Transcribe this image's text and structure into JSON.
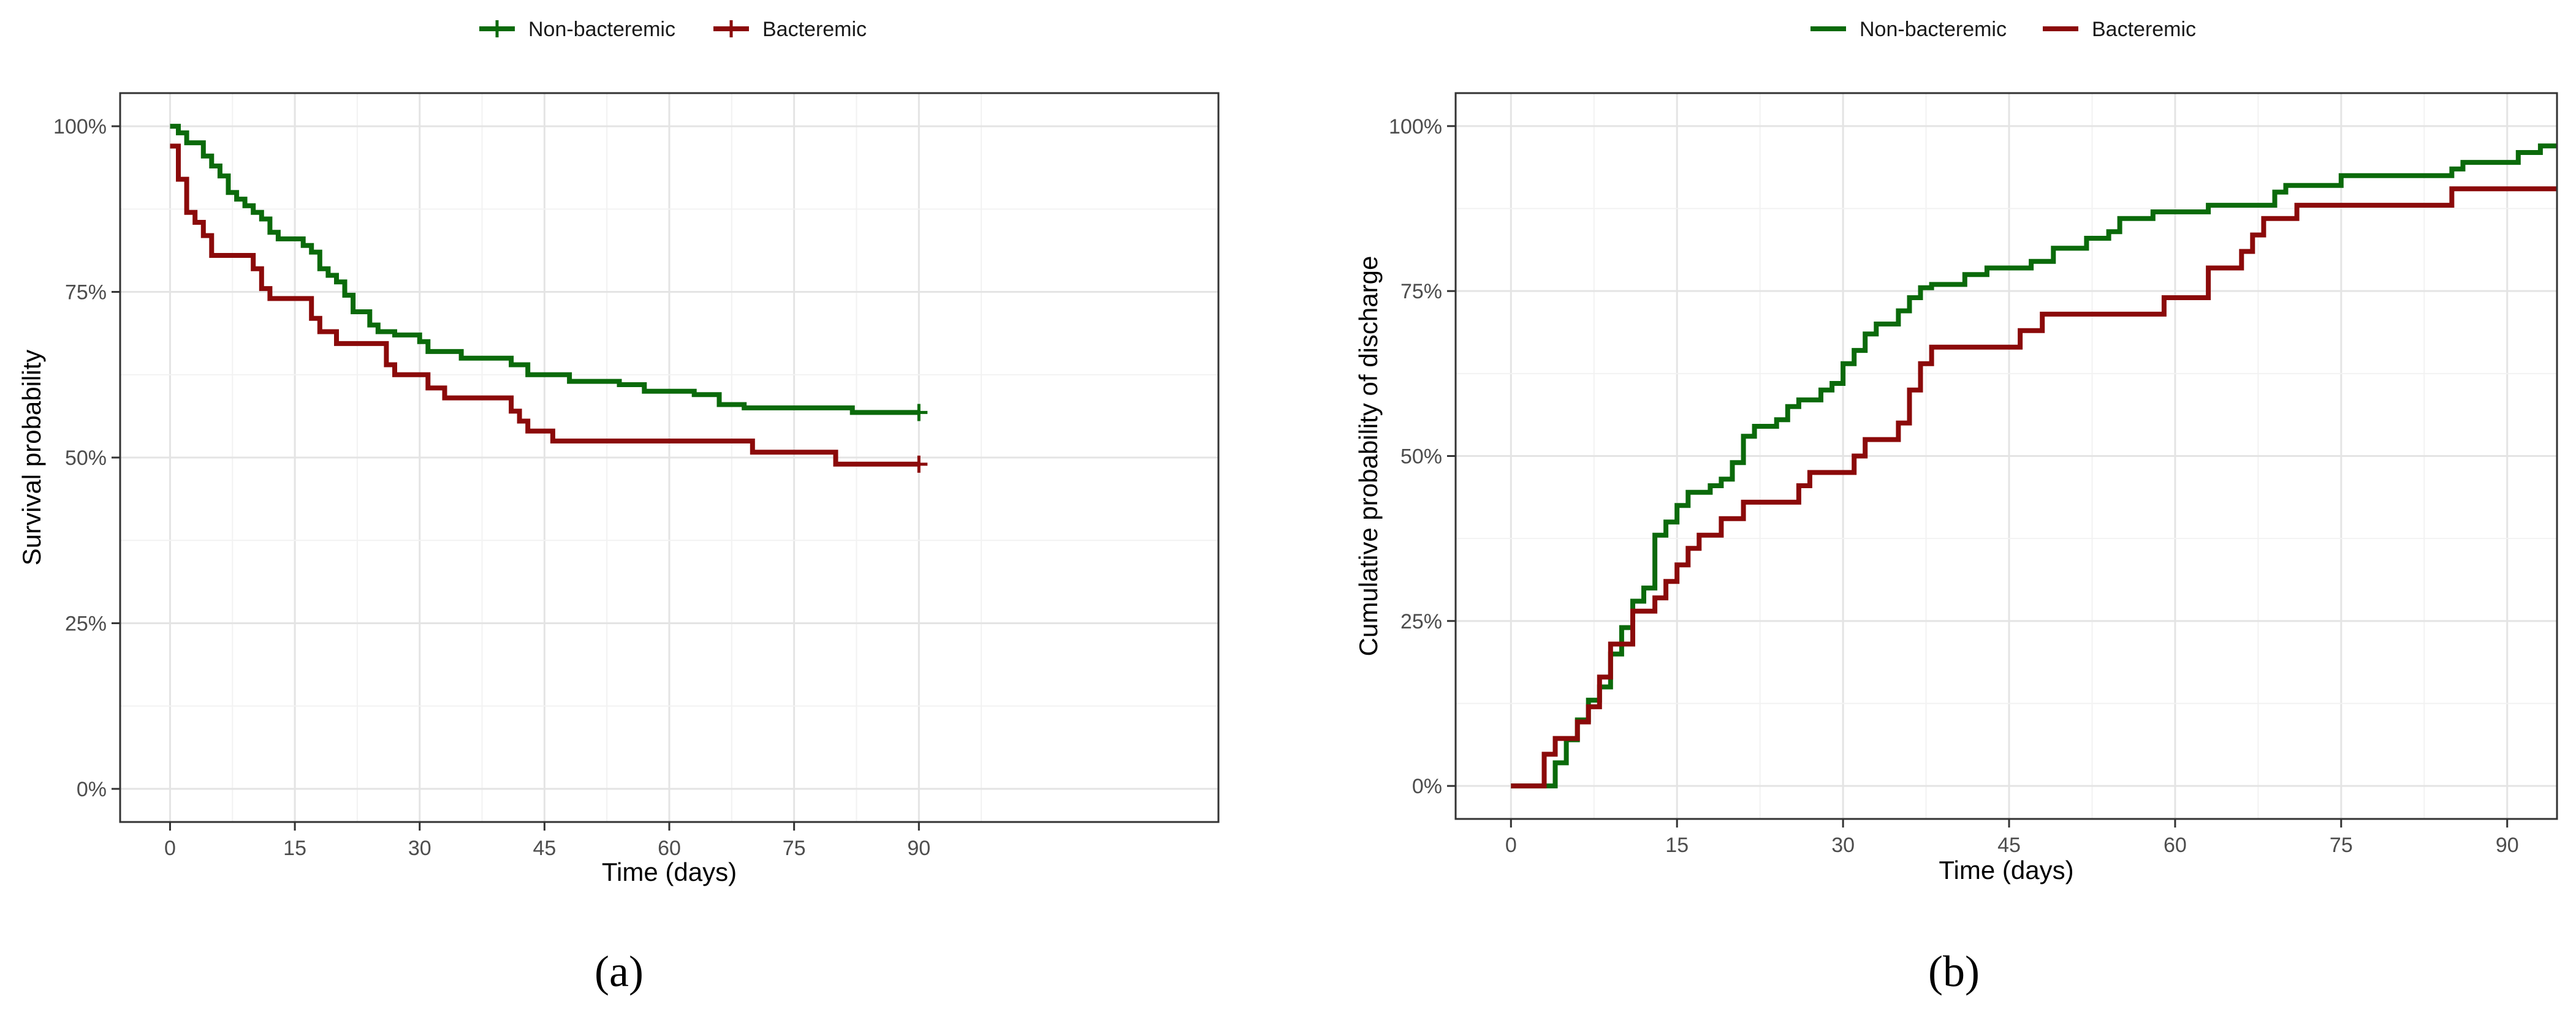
{
  "colors": {
    "non_bacteremic": "#0b6a0b",
    "bacteremic": "#8b0a0a",
    "panel_border": "#333333",
    "grid_major": "#e4e4e4",
    "grid_minor": "#f2f2f2",
    "tick_text": "#4d4d4d"
  },
  "chart_data": [
    {
      "type": "line",
      "caption": "(a)",
      "xlabel": "Time (days)",
      "ylabel": "Survival probability",
      "xlim": [
        -6,
        126
      ],
      "ylim": [
        -0.05,
        1.05
      ],
      "xticks": [
        0,
        15,
        30,
        45,
        60,
        75,
        90
      ],
      "xtick_labels": [
        "0",
        "15",
        "30",
        "45",
        "60",
        "75",
        "90"
      ],
      "yticks": [
        0,
        0.25,
        0.5,
        0.75,
        1.0
      ],
      "ytick_labels": [
        "0%",
        "25%",
        "50%",
        "75%",
        "100%"
      ],
      "grid": true,
      "legend": {
        "position": "top",
        "marker": "cross",
        "entries": [
          "Non-bacteremic",
          "Bacteremic"
        ]
      },
      "series": [
        {
          "name": "Non-bacteremic",
          "color_key": "non_bacteremic",
          "censor_mark_at": [
            90,
            0.568
          ],
          "step_points": [
            [
              0,
              1.0
            ],
            [
              1,
              0.99
            ],
            [
              2,
              0.975
            ],
            [
              4,
              0.955
            ],
            [
              5,
              0.94
            ],
            [
              6,
              0.925
            ],
            [
              7,
              0.9
            ],
            [
              8,
              0.89
            ],
            [
              9,
              0.88
            ],
            [
              10,
              0.87
            ],
            [
              11,
              0.86
            ],
            [
              12,
              0.84
            ],
            [
              13,
              0.83
            ],
            [
              16,
              0.82
            ],
            [
              17,
              0.81
            ],
            [
              18,
              0.785
            ],
            [
              19,
              0.775
            ],
            [
              20,
              0.765
            ],
            [
              21,
              0.745
            ],
            [
              22,
              0.72
            ],
            [
              24,
              0.7
            ],
            [
              25,
              0.69
            ],
            [
              27,
              0.685
            ],
            [
              30,
              0.675
            ],
            [
              31,
              0.66
            ],
            [
              35,
              0.65
            ],
            [
              41,
              0.64
            ],
            [
              43,
              0.625
            ],
            [
              48,
              0.615
            ],
            [
              54,
              0.61
            ],
            [
              57,
              0.6
            ],
            [
              63,
              0.595
            ],
            [
              66,
              0.58
            ],
            [
              69,
              0.575
            ],
            [
              82,
              0.568
            ],
            [
              90,
              0.568
            ]
          ]
        },
        {
          "name": "Bacteremic",
          "color_key": "bacteremic",
          "censor_mark_at": [
            90,
            0.49
          ],
          "step_points": [
            [
              0,
              0.97
            ],
            [
              1,
              0.92
            ],
            [
              2,
              0.87
            ],
            [
              3,
              0.855
            ],
            [
              4,
              0.835
            ],
            [
              5,
              0.805
            ],
            [
              10,
              0.785
            ],
            [
              11,
              0.755
            ],
            [
              12,
              0.74
            ],
            [
              17,
              0.71
            ],
            [
              18,
              0.69
            ],
            [
              20,
              0.672
            ],
            [
              26,
              0.64
            ],
            [
              27,
              0.625
            ],
            [
              31,
              0.605
            ],
            [
              33,
              0.59
            ],
            [
              41,
              0.57
            ],
            [
              42,
              0.555
            ],
            [
              43,
              0.54
            ],
            [
              46,
              0.525
            ],
            [
              70,
              0.508
            ],
            [
              80,
              0.49
            ],
            [
              90,
              0.49
            ]
          ]
        }
      ]
    },
    {
      "type": "line",
      "caption": "(b)",
      "xlabel": "Time (days)",
      "ylabel": "Cumulative probability of discharge",
      "xlim": [
        -5,
        94.5
      ],
      "ylim": [
        -0.05,
        1.05
      ],
      "xticks": [
        0,
        15,
        30,
        45,
        60,
        75,
        90
      ],
      "xtick_labels": [
        "0",
        "15",
        "30",
        "45",
        "60",
        "75",
        "90"
      ],
      "yticks": [
        0,
        0.25,
        0.5,
        0.75,
        1.0
      ],
      "ytick_labels": [
        "0%",
        "25%",
        "50%",
        "75%",
        "100%"
      ],
      "grid": true,
      "legend": {
        "position": "top",
        "marker": "line",
        "entries": [
          "Non-bacteremic",
          "Bacteremic"
        ]
      },
      "series": [
        {
          "name": "Non-bacteremic",
          "color_key": "non_bacteremic",
          "step_points": [
            [
              0,
              0.0
            ],
            [
              4,
              0.035
            ],
            [
              5,
              0.07
            ],
            [
              6,
              0.1
            ],
            [
              7,
              0.13
            ],
            [
              8,
              0.15
            ],
            [
              9,
              0.2
            ],
            [
              10,
              0.24
            ],
            [
              11,
              0.28
            ],
            [
              12,
              0.3
            ],
            [
              13,
              0.38
            ],
            [
              14,
              0.4
            ],
            [
              15,
              0.425
            ],
            [
              16,
              0.445
            ],
            [
              18,
              0.455
            ],
            [
              19,
              0.465
            ],
            [
              20,
              0.49
            ],
            [
              21,
              0.53
            ],
            [
              22,
              0.545
            ],
            [
              24,
              0.555
            ],
            [
              25,
              0.575
            ],
            [
              26,
              0.585
            ],
            [
              28,
              0.6
            ],
            [
              29,
              0.61
            ],
            [
              30,
              0.64
            ],
            [
              31,
              0.66
            ],
            [
              32,
              0.685
            ],
            [
              33,
              0.7
            ],
            [
              35,
              0.72
            ],
            [
              36,
              0.74
            ],
            [
              37,
              0.755
            ],
            [
              38,
              0.76
            ],
            [
              41,
              0.775
            ],
            [
              43,
              0.785
            ],
            [
              47,
              0.795
            ],
            [
              49,
              0.815
            ],
            [
              52,
              0.83
            ],
            [
              54,
              0.84
            ],
            [
              55,
              0.86
            ],
            [
              58,
              0.87
            ],
            [
              63,
              0.88
            ],
            [
              69,
              0.9
            ],
            [
              70,
              0.91
            ],
            [
              75,
              0.925
            ],
            [
              85,
              0.935
            ],
            [
              86,
              0.945
            ],
            [
              91,
              0.96
            ],
            [
              93,
              0.97
            ],
            [
              94.5,
              0.97
            ]
          ]
        },
        {
          "name": "Bacteremic",
          "color_key": "bacteremic",
          "step_points": [
            [
              0,
              0.0
            ],
            [
              3,
              0.048
            ],
            [
              4,
              0.072
            ],
            [
              6,
              0.097
            ],
            [
              7,
              0.12
            ],
            [
              8,
              0.165
            ],
            [
              9,
              0.215
            ],
            [
              11,
              0.265
            ],
            [
              13,
              0.285
            ],
            [
              14,
              0.31
            ],
            [
              15,
              0.335
            ],
            [
              16,
              0.36
            ],
            [
              17,
              0.38
            ],
            [
              19,
              0.405
            ],
            [
              21,
              0.43
            ],
            [
              26,
              0.455
            ],
            [
              27,
              0.475
            ],
            [
              31,
              0.5
            ],
            [
              32,
              0.525
            ],
            [
              35,
              0.55
            ],
            [
              36,
              0.6
            ],
            [
              37,
              0.64
            ],
            [
              38,
              0.665
            ],
            [
              46,
              0.69
            ],
            [
              48,
              0.715
            ],
            [
              59,
              0.74
            ],
            [
              63,
              0.785
            ],
            [
              66,
              0.81
            ],
            [
              67,
              0.835
            ],
            [
              68,
              0.86
            ],
            [
              71,
              0.88
            ],
            [
              85,
              0.905
            ],
            [
              94.5,
              0.905
            ]
          ]
        }
      ]
    }
  ]
}
